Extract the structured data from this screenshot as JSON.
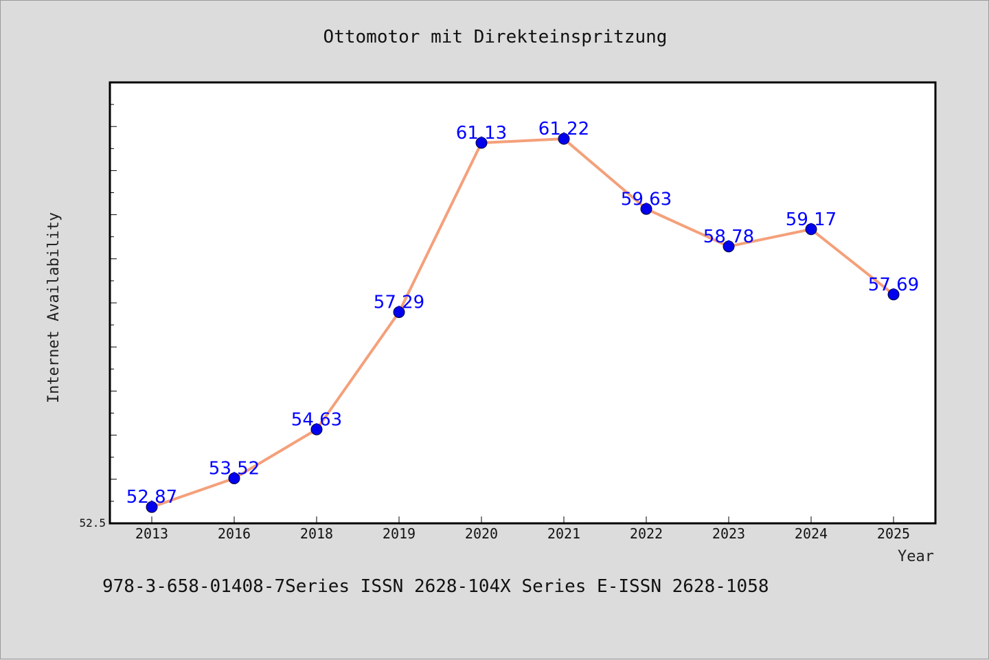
{
  "chart_data": {
    "type": "line",
    "title": "Ottomotor mit Direkteinspritzung",
    "xlabel": "Year",
    "ylabel": "Internet Availability",
    "categories": [
      "2013",
      "2016",
      "2018",
      "2019",
      "2020",
      "2021",
      "2022",
      "2023",
      "2024",
      "2025"
    ],
    "series": [
      {
        "values": [
          52.87,
          53.52,
          54.63,
          57.29,
          61.13,
          61.22,
          59.63,
          58.78,
          59.17,
          57.69
        ],
        "labels": [
          "52.87",
          "53.52",
          "54.63",
          "57.29",
          "61.13",
          "61.22",
          "59.63",
          "58.78",
          "59.17",
          "57.69"
        ],
        "line_color": "#f4a07a",
        "marker_color": "#0000ee"
      }
    ],
    "ylim": [
      52.5,
      62.5
    ],
    "yticks_labeled": [
      "52.5"
    ],
    "grid": false,
    "data_label_color": "#0000ff"
  },
  "footer": "978-3-658-01408-7Series ISSN 2628-104X Series E-ISSN 2628-1058"
}
